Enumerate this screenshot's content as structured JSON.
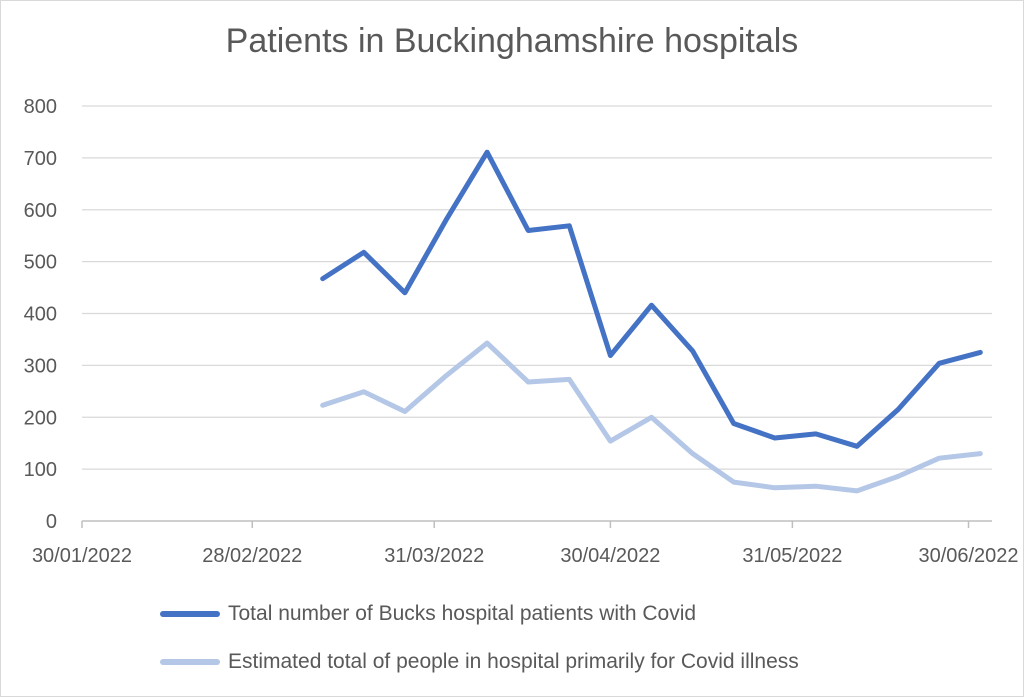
{
  "chart_data": {
    "type": "line",
    "title": "Patients in Buckinghamshire hospitals",
    "xlabel": "",
    "ylabel": "",
    "ylim": [
      0,
      800
    ],
    "yticks": [
      "0",
      "100",
      "200",
      "300",
      "400",
      "500",
      "600",
      "700",
      "800"
    ],
    "xlim": [
      "2022-01-30",
      "2022-07-04"
    ],
    "xticks": [
      "30/01/2022",
      "28/02/2022",
      "31/03/2022",
      "30/04/2022",
      "31/05/2022",
      "30/06/2022"
    ],
    "grid": true,
    "legend_position": "bottom",
    "x": [
      "2022-03-12",
      "2022-03-19",
      "2022-03-26",
      "2022-04-02",
      "2022-04-09",
      "2022-04-16",
      "2022-04-23",
      "2022-04-30",
      "2022-05-07",
      "2022-05-14",
      "2022-05-21",
      "2022-05-28",
      "2022-06-04",
      "2022-06-11",
      "2022-06-18",
      "2022-06-25",
      "2022-07-02"
    ],
    "series": [
      {
        "name": "Total number of Bucks hospital patients with Covid",
        "color": "#4472c4",
        "values": [
          467,
          518,
          440,
          580,
          711,
          560,
          569,
          319,
          416,
          328,
          188,
          160,
          168,
          144,
          215,
          304,
          325
        ]
      },
      {
        "name": "Estimated total of people in hospital primarily for Covid illness",
        "color": "#b4c7e7",
        "values": [
          223,
          249,
          211,
          280,
          343,
          268,
          273,
          154,
          200,
          130,
          75,
          64,
          67,
          58,
          86,
          121,
          130
        ]
      }
    ]
  }
}
